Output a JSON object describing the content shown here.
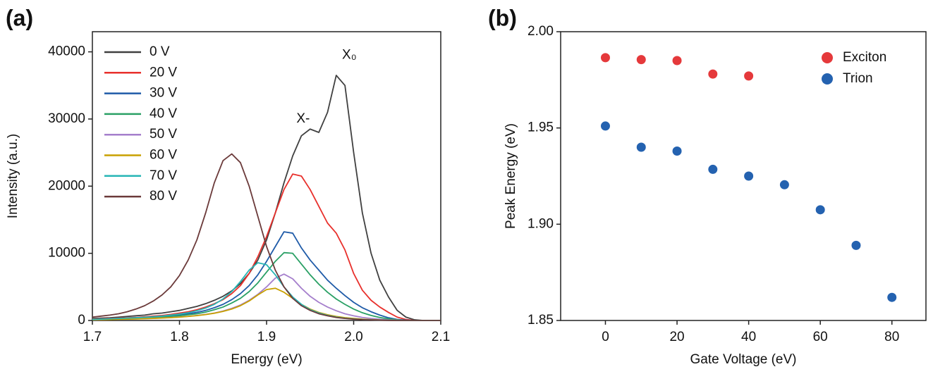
{
  "chart_data": [
    {
      "type": "line",
      "panel_label": "(a)",
      "x_label": "Energy (eV)",
      "y_label": "Intensity (a.u.)",
      "xlim": [
        1.7,
        2.1
      ],
      "xticks": [
        1.7,
        1.8,
        1.9,
        {
          "value": 2,
          "label": "2.0"
        },
        2.1
      ],
      "ylim": [
        0,
        43000
      ],
      "yticks": [
        0,
        10000,
        20000,
        30000,
        40000
      ],
      "legend": "upper left",
      "annotations": [
        {
          "text": "X-",
          "x": 1.942,
          "y": 30000
        },
        {
          "text": "X₀",
          "x": 1.995,
          "y": 39500
        }
      ],
      "x": [
        1.7,
        1.71,
        1.72,
        1.73,
        1.74,
        1.75,
        1.76,
        1.77,
        1.78,
        1.79,
        1.8,
        1.81,
        1.82,
        1.83,
        1.84,
        1.85,
        1.86,
        1.87,
        1.88,
        1.89,
        1.9,
        1.91,
        1.92,
        1.93,
        1.94,
        1.95,
        1.96,
        1.97,
        1.98,
        1.99,
        2.0,
        2.01,
        2.02,
        2.03,
        2.04,
        2.05,
        2.06,
        2.07,
        2.08,
        2.09,
        2.1
      ],
      "series": [
        {
          "name": "0 V",
          "color": "#404040",
          "values": [
            300,
            350,
            400,
            500,
            600,
            700,
            800,
            1000,
            1100,
            1300,
            1500,
            1800,
            2100,
            2500,
            3000,
            3600,
            4400,
            5500,
            7000,
            9000,
            12000,
            16000,
            20500,
            24500,
            27500,
            28500,
            28000,
            31000,
            36500,
            35000,
            25000,
            16000,
            10000,
            6000,
            3500,
            1500,
            500,
            100,
            0,
            0,
            0
          ]
        },
        {
          "name": "20 V",
          "color": "#e8302c",
          "values": [
            200,
            250,
            300,
            350,
            400,
            450,
            550,
            650,
            750,
            900,
            1100,
            1300,
            1600,
            2000,
            2500,
            3100,
            4000,
            5200,
            7000,
            9500,
            12500,
            16000,
            19500,
            21800,
            21500,
            19500,
            17000,
            14500,
            13000,
            10500,
            7000,
            4500,
            3000,
            2000,
            1200,
            500,
            150,
            0,
            0,
            0,
            0
          ]
        },
        {
          "name": "30 V",
          "color": "#1f5ba8",
          "values": [
            150,
            200,
            250,
            300,
            350,
            400,
            450,
            500,
            600,
            700,
            850,
            1000,
            1200,
            1500,
            1900,
            2400,
            3100,
            4000,
            5200,
            6800,
            8800,
            11000,
            13200,
            13000,
            10800,
            9000,
            7500,
            6000,
            4800,
            3700,
            2700,
            1900,
            1300,
            800,
            400,
            150,
            50,
            0,
            0,
            0,
            0
          ]
        },
        {
          "name": "40 V",
          "color": "#2aa065",
          "values": [
            150,
            180,
            220,
            260,
            300,
            350,
            400,
            450,
            520,
            600,
            700,
            850,
            1000,
            1250,
            1600,
            2000,
            2600,
            3300,
            4300,
            5600,
            7200,
            8800,
            10100,
            10000,
            8400,
            6800,
            5400,
            4200,
            3200,
            2400,
            1700,
            1150,
            750,
            450,
            250,
            100,
            0,
            0,
            0,
            0,
            0
          ]
        },
        {
          "name": "50 V",
          "color": "#a57fcc",
          "values": [
            100,
            120,
            150,
            180,
            200,
            240,
            280,
            320,
            380,
            440,
            520,
            620,
            750,
            900,
            1100,
            1400,
            1800,
            2300,
            3000,
            3900,
            5000,
            6300,
            6900,
            6200,
            4800,
            3600,
            2700,
            2000,
            1450,
            1000,
            700,
            450,
            300,
            180,
            100,
            40,
            0,
            0,
            0,
            0,
            0
          ]
        },
        {
          "name": "60 V",
          "color": "#c8a000",
          "values": [
            100,
            120,
            140,
            170,
            200,
            230,
            270,
            310,
            360,
            420,
            500,
            600,
            720,
            880,
            1080,
            1350,
            1700,
            2200,
            2900,
            3800,
            4600,
            4800,
            4200,
            3300,
            2400,
            1700,
            1200,
            850,
            600,
            420,
            300,
            200,
            130,
            80,
            40,
            20,
            0,
            0,
            0,
            0,
            0
          ]
        },
        {
          "name": "70 V",
          "color": "#27b5b5",
          "values": [
            150,
            200,
            250,
            300,
            350,
            400,
            480,
            560,
            660,
            800,
            950,
            1150,
            1450,
            1850,
            2400,
            3200,
            4300,
            5800,
            7500,
            8600,
            8300,
            6800,
            5000,
            3500,
            2400,
            1600,
            1100,
            750,
            500,
            330,
            220,
            140,
            90,
            50,
            30,
            10,
            0,
            0,
            0,
            0,
            0
          ]
        },
        {
          "name": "80 V",
          "color": "#6b3a3a",
          "values": [
            500,
            650,
            800,
            1000,
            1300,
            1700,
            2200,
            2900,
            3800,
            5000,
            6700,
            9000,
            12000,
            16000,
            20500,
            23800,
            24800,
            23500,
            20000,
            15500,
            11000,
            7500,
            5000,
            3300,
            2200,
            1500,
            1000,
            700,
            450,
            300,
            200,
            130,
            80,
            50,
            20,
            0,
            0,
            0,
            0,
            0,
            0
          ]
        }
      ]
    },
    {
      "type": "scatter",
      "panel_label": "(b)",
      "x_label": "Gate Voltage (eV)",
      "y_label": "Peak Energy (eV)",
      "xlim": [
        -12.5,
        89.5
      ],
      "xticks": [
        0,
        20,
        40,
        60,
        80
      ],
      "ylim": [
        1.85,
        2.0
      ],
      "yticks": [
        1.85,
        {
          "value": 1.9,
          "label": "1.90"
        },
        1.95,
        {
          "value": 2,
          "label": "2.00"
        }
      ],
      "legend": "upper right",
      "series": [
        {
          "name": "Exciton",
          "color": "#e5393b",
          "x": [
            0,
            10,
            20,
            30,
            40
          ],
          "values": [
            1.9865,
            1.9855,
            1.985,
            1.978,
            1.977
          ]
        },
        {
          "name": "Trion",
          "color": "#2462b0",
          "x": [
            0,
            10,
            20,
            30,
            40,
            50,
            60,
            70,
            80
          ],
          "values": [
            1.951,
            1.94,
            1.938,
            1.9285,
            1.925,
            1.9205,
            1.9075,
            1.889,
            1.862
          ]
        }
      ]
    }
  ]
}
